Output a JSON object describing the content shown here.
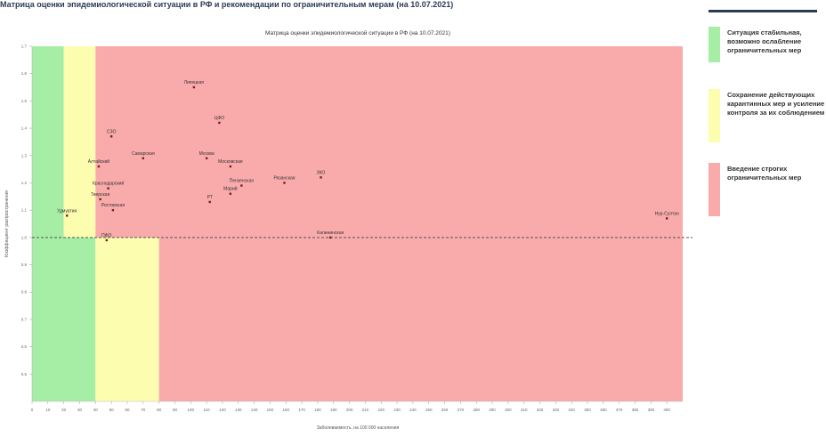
{
  "header": {
    "title": "Матрица оценки эпидемиологической ситуации в РФ и рекомендации по ограничительным мерам (на 10.07.2021)"
  },
  "colors": {
    "green": "#a6eea6",
    "yellow": "#fdfdb0",
    "red": "#f9aaaa",
    "header": "#2b3a55"
  },
  "legend": [
    {
      "label": "Ситуация стабильная, возможно ослабление ограничительных мер",
      "color": "#a6eea6"
    },
    {
      "label": "Сохранение действующих карантинных мер и усиление контроля за их соблюдением",
      "color": "#fdfdb0"
    },
    {
      "label": "Введение строгих ограничительных мер",
      "color": "#f9aaaa"
    }
  ],
  "chart_data": {
    "type": "scatter",
    "title": "Матрица оценки эпидемиологической ситуации в РФ (на 10.07.2021)",
    "xlabel": "Заболеваемость, на 100 000 населения",
    "ylabel": "Коэффициент распространения",
    "xlim": [
      0,
      410
    ],
    "ylim": [
      0.4,
      1.7
    ],
    "x_ticks": [
      0,
      10,
      20,
      30,
      40,
      50,
      60,
      70,
      80,
      90,
      100,
      110,
      120,
      130,
      140,
      150,
      160,
      170,
      180,
      190,
      200,
      210,
      220,
      230,
      240,
      250,
      260,
      270,
      280,
      290,
      300,
      310,
      320,
      330,
      340,
      350,
      360,
      370,
      380,
      390,
      400
    ],
    "y_ticks": [
      0.5,
      0.6,
      0.7,
      0.8,
      0.9,
      1.0,
      1.1,
      1.2,
      1.3,
      1.4,
      1.5,
      1.6,
      1.7
    ],
    "reference_line_y": 1.0,
    "zones": [
      {
        "color": "green",
        "x0": 0,
        "x1": 40,
        "y0": 0.4,
        "y1": 1.0
      },
      {
        "color": "green",
        "x0": 0,
        "x1": 20,
        "y0": 1.0,
        "y1": 1.7
      },
      {
        "color": "yellow",
        "x0": 20,
        "x1": 40,
        "y0": 1.0,
        "y1": 1.7
      },
      {
        "color": "yellow",
        "x0": 40,
        "x1": 80,
        "y0": 0.4,
        "y1": 1.0
      },
      {
        "color": "red",
        "x0": 40,
        "x1": 410,
        "y0": 1.0,
        "y1": 1.7
      },
      {
        "color": "red",
        "x0": 80,
        "x1": 410,
        "y0": 0.4,
        "y1": 1.0
      }
    ],
    "points": [
      {
        "label": "ЦФО",
        "x": 118,
        "y": 1.42
      },
      {
        "label": "Москва",
        "x": 110,
        "y": 1.29
      },
      {
        "label": "Липецкая",
        "x": 102,
        "y": 1.55
      },
      {
        "label": "СЗО",
        "x": 50,
        "y": 1.37
      },
      {
        "label": "Самарская",
        "x": 70,
        "y": 1.29
      },
      {
        "label": "Алтайский",
        "x": 42,
        "y": 1.26
      },
      {
        "label": "Краснодарский",
        "x": 48,
        "y": 1.18
      },
      {
        "label": "Тверская",
        "x": 43,
        "y": 1.14
      },
      {
        "label": "Удмуртия",
        "x": 22,
        "y": 1.08
      },
      {
        "label": "Ростовская",
        "x": 51,
        "y": 1.1
      },
      {
        "label": "ПФО",
        "x": 47,
        "y": 0.99
      },
      {
        "label": "Московская",
        "x": 125,
        "y": 1.26
      },
      {
        "label": "Пензенская",
        "x": 132,
        "y": 1.19
      },
      {
        "label": "Марий",
        "x": 125,
        "y": 1.16
      },
      {
        "label": "РТ",
        "x": 112,
        "y": 1.13
      },
      {
        "label": "Рязанская",
        "x": 159,
        "y": 1.2
      },
      {
        "label": "ЗКО",
        "x": 182,
        "y": 1.22
      },
      {
        "label": "Калининская",
        "x": 188,
        "y": 1.0
      },
      {
        "label": "Нур-Султан",
        "x": 400,
        "y": 1.07
      }
    ]
  }
}
